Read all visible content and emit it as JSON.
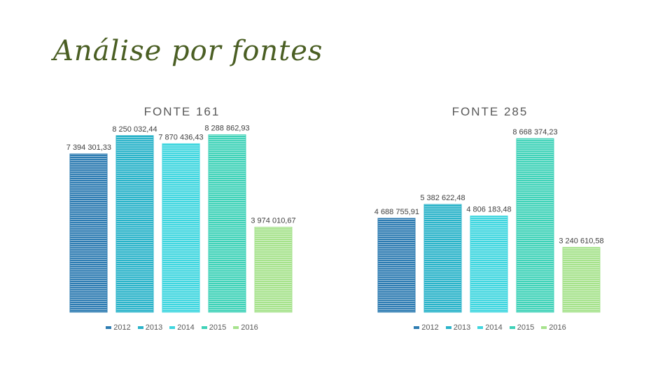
{
  "slide": {
    "title": "Análise por fontes"
  },
  "colors": {
    "2012": "#2e7cb2",
    "2013": "#2ab3c9",
    "2014": "#3fd6df",
    "2015": "#3fd2b8",
    "2016": "#a6e28c"
  },
  "chart_data": [
    {
      "type": "bar",
      "title": "FONTE 161",
      "categories": [
        "2012",
        "2013",
        "2014",
        "2015",
        "2016"
      ],
      "values": [
        7394301.33,
        8250032.44,
        7870436.43,
        8288862.93,
        3974010.67
      ],
      "labels": [
        "7 394 301,33",
        "8 250 032,44",
        "7 870 436,43",
        "8 288 862,93",
        "3 974 010,67"
      ],
      "legend": [
        "2012",
        "2013",
        "2014",
        "2015",
        "2016"
      ],
      "legend_position": "bottom",
      "ylim": [
        0,
        8700000
      ],
      "grid": false
    },
    {
      "type": "bar",
      "title": "FONTE 285",
      "categories": [
        "2012",
        "2013",
        "2014",
        "2015",
        "2016"
      ],
      "values": [
        4688755.91,
        5382622.48,
        4806183.48,
        8668374.23,
        3240610.58
      ],
      "labels": [
        "4 688 755,91",
        "5 382 622,48",
        "4 806 183,48",
        "8 668 374,23",
        "3 240 610,58"
      ],
      "legend": [
        "2012",
        "2013",
        "2014",
        "2015",
        "2016"
      ],
      "legend_position": "bottom",
      "ylim": [
        0,
        9300000
      ],
      "grid": false
    }
  ]
}
